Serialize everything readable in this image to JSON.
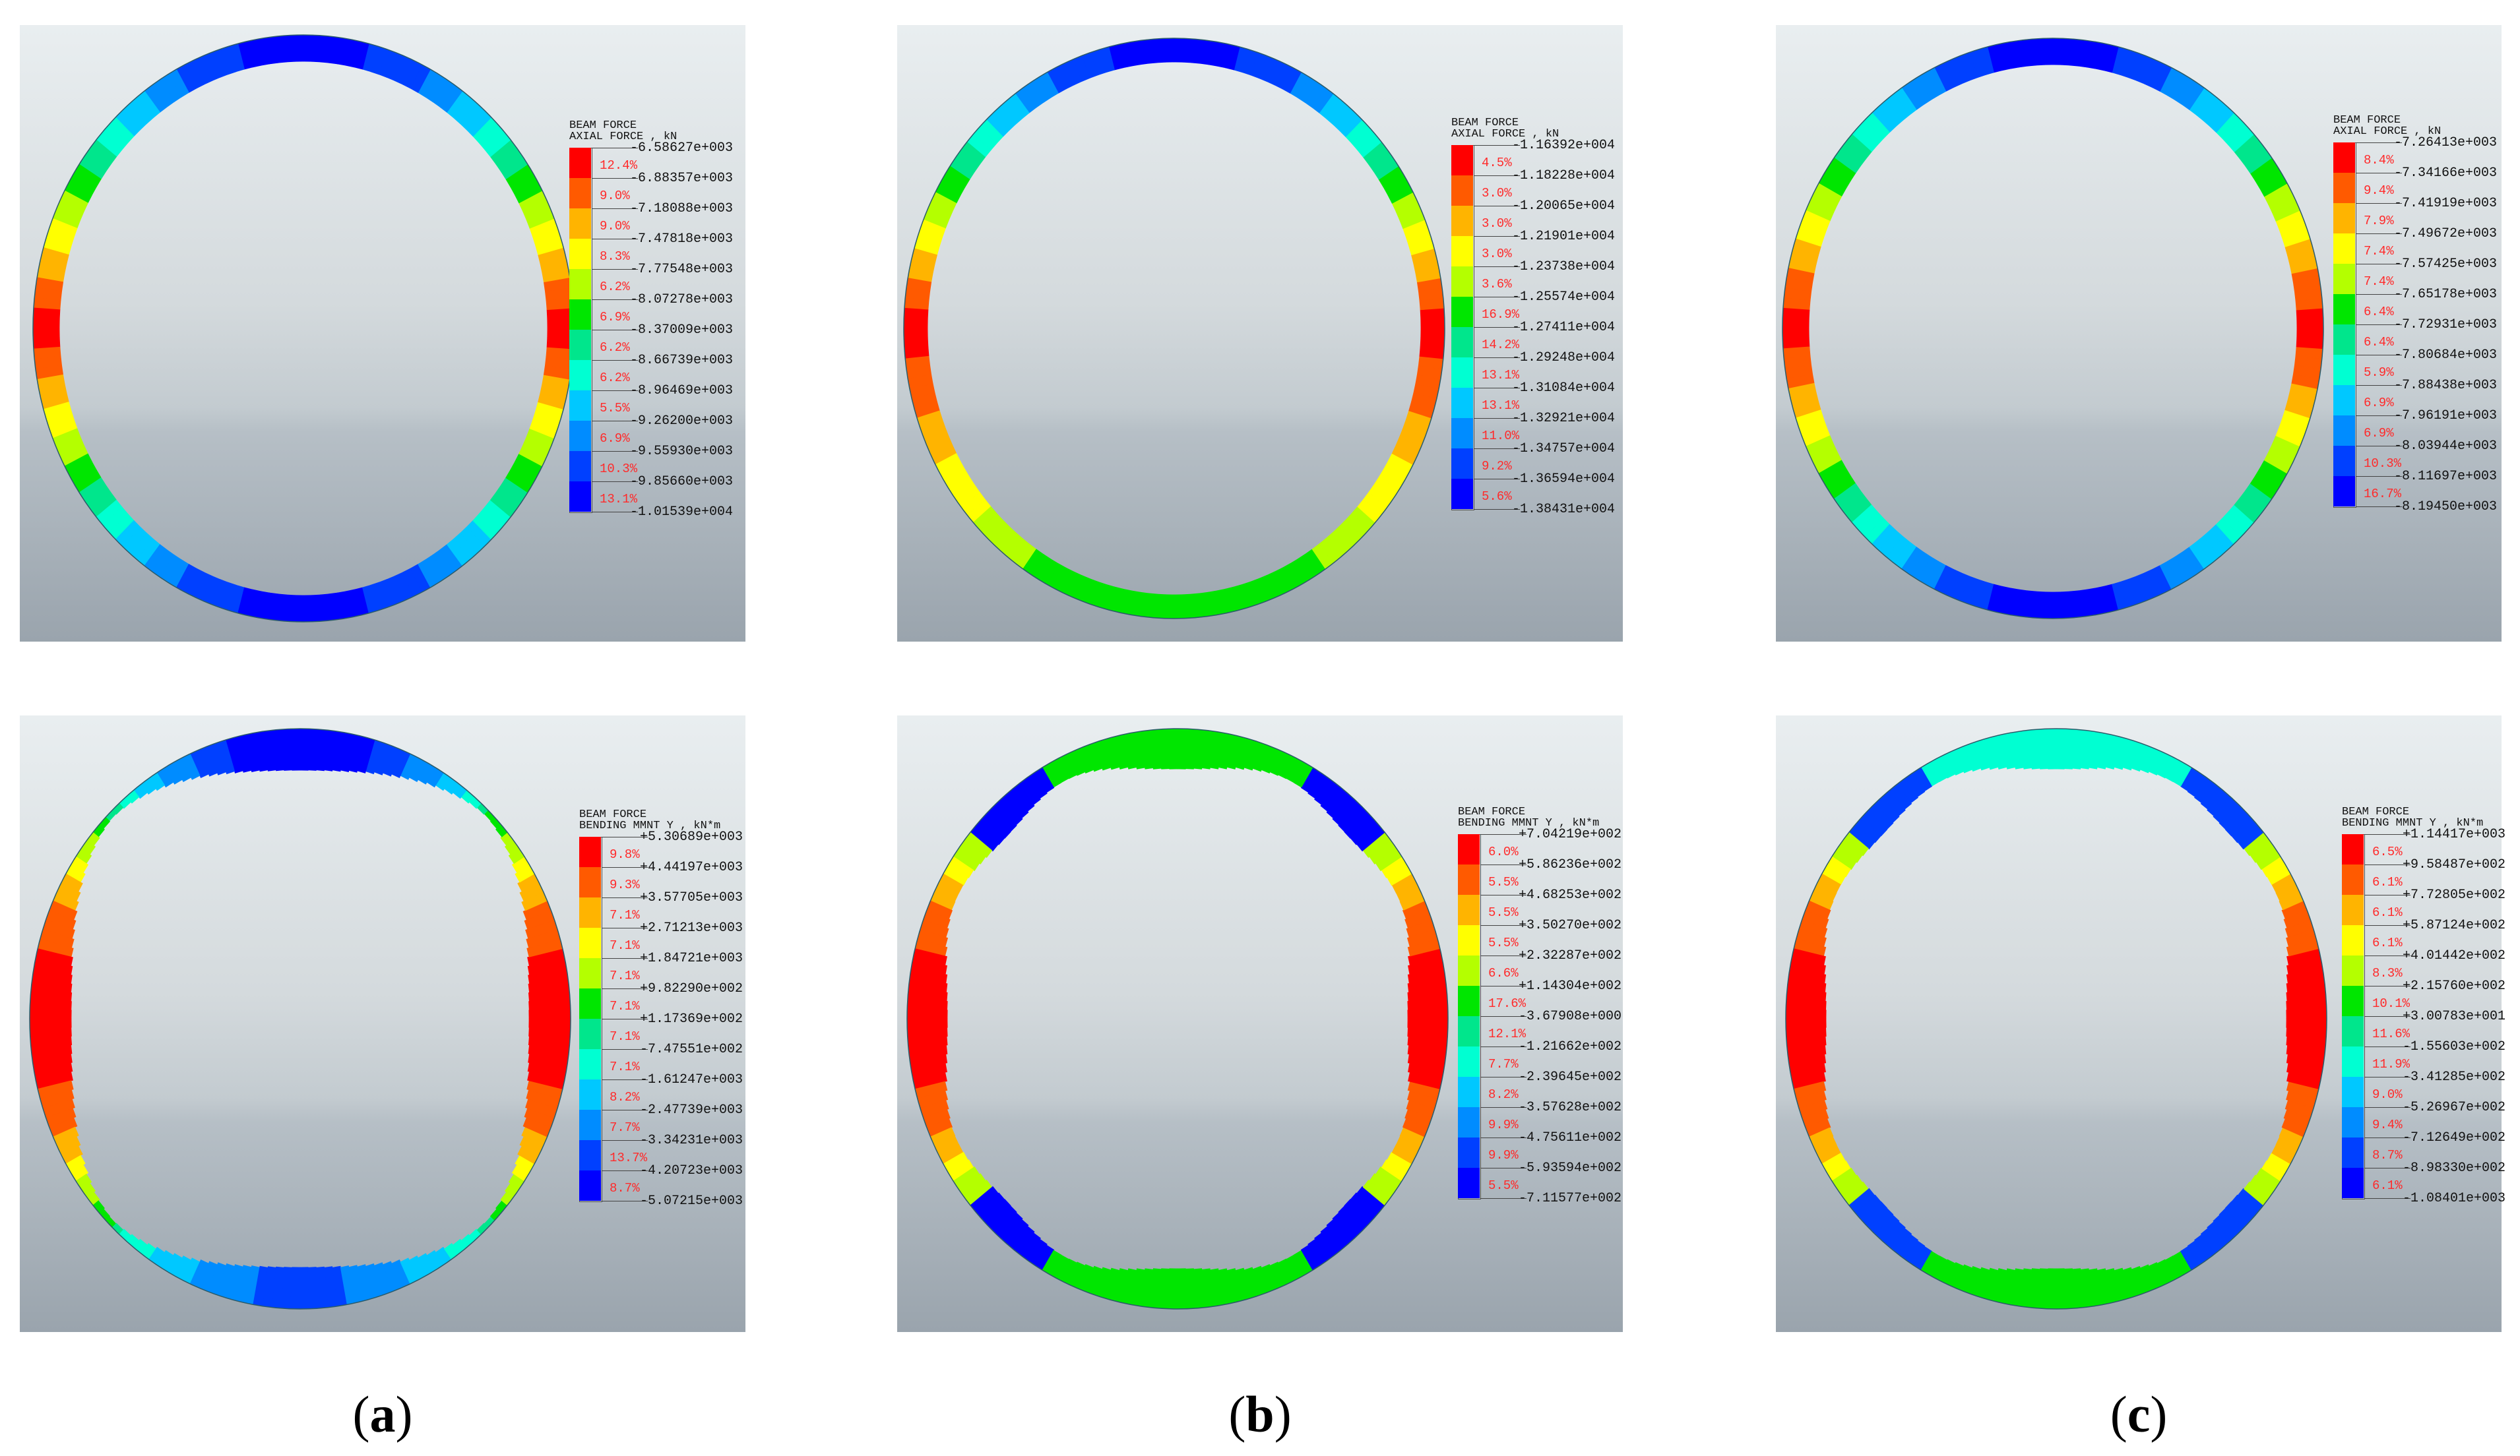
{
  "captions": [
    "a",
    "b",
    "c"
  ],
  "panels": [
    {
      "id": "a-axial",
      "legend": {
        "title1": "BEAM FORCE",
        "title2": "AXIAL FORCE , kN",
        "values": [
          "-6.58627e+003",
          "-6.88357e+003",
          "-7.18088e+003",
          "-7.47818e+003",
          "-7.77548e+003",
          "-8.07278e+003",
          "-8.37009e+003",
          "-8.66739e+003",
          "-8.96469e+003",
          "-9.26200e+003",
          "-9.55930e+003",
          "-9.85660e+003",
          "-1.01539e+004"
        ],
        "percents": [
          "12.4%",
          "9.0%",
          "9.0%",
          "8.3%",
          "6.2%",
          "6.9%",
          "6.2%",
          "6.2%",
          "5.5%",
          "6.9%",
          "10.3%",
          "13.1%"
        ]
      }
    },
    {
      "id": "b-axial",
      "legend": {
        "title1": "BEAM FORCE",
        "title2": "AXIAL FORCE , kN",
        "values": [
          "-1.16392e+004",
          "-1.18228e+004",
          "-1.20065e+004",
          "-1.21901e+004",
          "-1.23738e+004",
          "-1.25574e+004",
          "-1.27411e+004",
          "-1.29248e+004",
          "-1.31084e+004",
          "-1.32921e+004",
          "-1.34757e+004",
          "-1.36594e+004",
          "-1.38431e+004"
        ],
        "percents": [
          "4.5%",
          "3.0%",
          "3.0%",
          "3.0%",
          "3.6%",
          "16.9%",
          "14.2%",
          "13.1%",
          "13.1%",
          "11.0%",
          "9.2%",
          "5.6%"
        ]
      }
    },
    {
      "id": "c-axial",
      "legend": {
        "title1": "BEAM FORCE",
        "title2": "AXIAL FORCE , kN",
        "values": [
          "-7.26413e+003",
          "-7.34166e+003",
          "-7.41919e+003",
          "-7.49672e+003",
          "-7.57425e+003",
          "-7.65178e+003",
          "-7.72931e+003",
          "-7.80684e+003",
          "-7.88438e+003",
          "-7.96191e+003",
          "-8.03944e+003",
          "-8.11697e+003",
          "-8.19450e+003"
        ],
        "percents": [
          "8.4%",
          "9.4%",
          "7.9%",
          "7.4%",
          "7.4%",
          "6.4%",
          "6.4%",
          "5.9%",
          "6.9%",
          "6.9%",
          "10.3%",
          "16.7%"
        ]
      }
    },
    {
      "id": "a-bending",
      "legend": {
        "title1": "BEAM FORCE",
        "title2": "BENDING MMNT Y , kN*m",
        "values": [
          "+5.30689e+003",
          "+4.44197e+003",
          "+3.57705e+003",
          "+2.71213e+003",
          "+1.84721e+003",
          "+9.82290e+002",
          "+1.17369e+002",
          "-7.47551e+002",
          "-1.61247e+003",
          "-2.47739e+003",
          "-3.34231e+003",
          "-4.20723e+003",
          "-5.07215e+003"
        ],
        "percents": [
          "9.8%",
          "9.3%",
          "7.1%",
          "7.1%",
          "7.1%",
          "7.1%",
          "7.1%",
          "7.1%",
          "8.2%",
          "7.7%",
          "13.7%",
          "8.7%"
        ]
      }
    },
    {
      "id": "b-bending",
      "legend": {
        "title1": "BEAM FORCE",
        "title2": "BENDING MMNT Y , kN*m",
        "values": [
          "+7.04219e+002",
          "+5.86236e+002",
          "+4.68253e+002",
          "+3.50270e+002",
          "+2.32287e+002",
          "+1.14304e+002",
          "-3.67908e+000",
          "-1.21662e+002",
          "-2.39645e+002",
          "-3.57628e+002",
          "-4.75611e+002",
          "-5.93594e+002",
          "-7.11577e+002"
        ],
        "percents": [
          "6.0%",
          "5.5%",
          "5.5%",
          "5.5%",
          "6.6%",
          "17.6%",
          "12.1%",
          "7.7%",
          "8.2%",
          "9.9%",
          "9.9%",
          "5.5%"
        ]
      }
    },
    {
      "id": "c-bending",
      "legend": {
        "title1": "BEAM FORCE",
        "title2": "BENDING MMNT Y , kN*m",
        "values": [
          "+1.14417e+003",
          "+9.58487e+002",
          "+7.72805e+002",
          "+5.87124e+002",
          "+4.01442e+002",
          "+2.15760e+002",
          "+3.00783e+001",
          "-1.55603e+002",
          "-3.41285e+002",
          "-5.26967e+002",
          "-7.12649e+002",
          "-8.98330e+002",
          "-1.08401e+003"
        ],
        "percents": [
          "6.5%",
          "6.1%",
          "6.1%",
          "6.1%",
          "8.3%",
          "10.1%",
          "11.6%",
          "11.9%",
          "9.0%",
          "9.4%",
          "8.7%",
          "6.1%"
        ]
      }
    }
  ],
  "colors": {
    "scale": [
      "#ff0000",
      "#ff5a00",
      "#ffb400",
      "#ffff00",
      "#b4ff00",
      "#00e600",
      "#00e68c",
      "#00ffd2",
      "#00c8ff",
      "#008cff",
      "#0040ff",
      "#0000ff"
    ]
  }
}
